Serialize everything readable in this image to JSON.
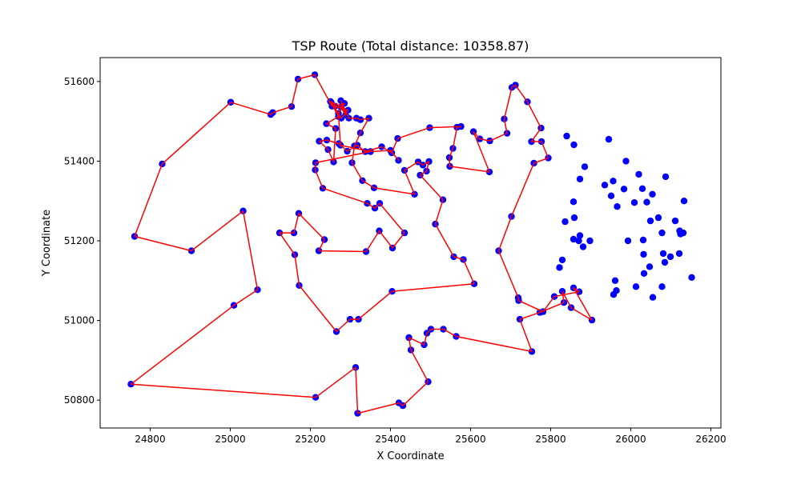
{
  "chart_data": {
    "type": "scatter",
    "title": "TSP Route (Total distance: 10358.87)",
    "xlabel": "X Coordinate",
    "ylabel": "Y Coordinate",
    "xlim": [
      24675,
      26225
    ],
    "ylim": [
      50730,
      51660
    ],
    "xticks": [
      24800,
      25000,
      25200,
      25400,
      25600,
      25800,
      26000,
      26200
    ],
    "yticks": [
      50800,
      51000,
      51200,
      51400,
      51600
    ],
    "grid": false,
    "legend": "none",
    "colors": {
      "route": "#ff0000",
      "city": "#0000ff"
    },
    "route": [
      [
        25001,
        51548
      ],
      [
        24830,
        51393
      ],
      [
        24761,
        51211
      ],
      [
        24903,
        51175
      ],
      [
        25032,
        51275
      ],
      [
        25068,
        51077
      ],
      [
        25009,
        51038
      ],
      [
        24752,
        50840
      ],
      [
        25213,
        50807
      ],
      [
        25313,
        50882
      ],
      [
        25318,
        50767
      ],
      [
        25421,
        50793
      ],
      [
        25431,
        50786
      ],
      [
        25494,
        50846
      ],
      [
        25451,
        50926
      ],
      [
        25446,
        50957
      ],
      [
        25484,
        50939
      ],
      [
        25491,
        50968
      ],
      [
        25501,
        50978
      ],
      [
        25532,
        50978
      ],
      [
        25564,
        50960
      ],
      [
        25753,
        50922
      ],
      [
        25723,
        51003
      ],
      [
        25773,
        51020
      ],
      [
        25833,
        51045
      ],
      [
        25829,
        51073
      ],
      [
        25851,
        51032
      ],
      [
        25903,
        51001
      ],
      [
        25857,
        51082
      ],
      [
        25871,
        51072
      ],
      [
        25809,
        51060
      ],
      [
        25781,
        51022
      ],
      [
        25720,
        51050
      ],
      [
        25719,
        51057
      ],
      [
        25670,
        51175
      ],
      [
        25702,
        51261
      ],
      [
        25758,
        51395
      ],
      [
        25794,
        51408
      ],
      [
        25777,
        51449
      ],
      [
        25752,
        51449
      ],
      [
        25776,
        51483
      ],
      [
        25742,
        51549
      ],
      [
        25712,
        51591
      ],
      [
        25703,
        51585
      ],
      [
        25684,
        51506
      ],
      [
        25691,
        51470
      ],
      [
        25648,
        51451
      ],
      [
        25623,
        51456
      ],
      [
        25607,
        51474
      ],
      [
        25647,
        51373
      ],
      [
        25548,
        51387
      ],
      [
        25547,
        51409
      ],
      [
        25556,
        51432
      ],
      [
        25566,
        51485
      ],
      [
        25576,
        51487
      ],
      [
        25498,
        51484
      ],
      [
        25418,
        51457
      ],
      [
        25403,
        51421
      ],
      [
        25378,
        51436
      ],
      [
        25337,
        51424
      ],
      [
        25317,
        51440
      ],
      [
        25292,
        51425
      ],
      [
        25271,
        51444
      ],
      [
        25241,
        51453
      ],
      [
        25222,
        51450
      ],
      [
        25244,
        51429
      ],
      [
        25258,
        51398
      ],
      [
        25263,
        51482
      ],
      [
        25240,
        51494
      ],
      [
        25270,
        51512
      ],
      [
        25250,
        51550
      ],
      [
        25276,
        51536
      ],
      [
        25288,
        51516
      ],
      [
        25276,
        51552
      ],
      [
        25296,
        51508
      ],
      [
        25315,
        51508
      ],
      [
        25325,
        51504
      ],
      [
        25346,
        51508
      ],
      [
        25325,
        51471
      ],
      [
        25310,
        51438
      ],
      [
        25304,
        51396
      ],
      [
        25330,
        51351
      ],
      [
        25359,
        51333
      ],
      [
        25460,
        51317
      ],
      [
        25435,
        51377
      ],
      [
        25469,
        51398
      ],
      [
        25481,
        51390
      ],
      [
        25496,
        51399
      ],
      [
        25490,
        51375
      ],
      [
        25474,
        51365
      ],
      [
        25531,
        51303
      ],
      [
        25512,
        51242
      ],
      [
        25558,
        51160
      ],
      [
        25582,
        51153
      ],
      [
        25609,
        51092
      ],
      [
        25404,
        51073
      ],
      [
        25320,
        51003
      ],
      [
        25299,
        51003
      ],
      [
        25265,
        50972
      ],
      [
        25172,
        51088
      ],
      [
        25161,
        51165
      ],
      [
        25123,
        51220
      ],
      [
        25159,
        51220
      ],
      [
        25171,
        51269
      ],
      [
        25235,
        51203
      ],
      [
        25221,
        51175
      ],
      [
        25339,
        51173
      ],
      [
        25372,
        51225
      ],
      [
        25405,
        51182
      ],
      [
        25435,
        51220
      ],
      [
        25373,
        51294
      ],
      [
        25361,
        51282
      ],
      [
        25342,
        51294
      ],
      [
        25231,
        51332
      ],
      [
        25212,
        51378
      ],
      [
        25213,
        51396
      ],
      [
        25350,
        51424
      ],
      [
        25400,
        51427
      ],
      [
        25420,
        51402
      ],
      [
        25400,
        51427
      ],
      [
        25350,
        51424
      ],
      [
        25275,
        51440
      ],
      [
        25270,
        51520
      ],
      [
        25285,
        51545
      ],
      [
        25262,
        51538
      ],
      [
        25252,
        51548
      ],
      [
        25277,
        51508
      ],
      [
        25294,
        51528
      ],
      [
        25254,
        51538
      ],
      [
        25211,
        51617
      ],
      [
        25169,
        51606
      ],
      [
        25153,
        51537
      ],
      [
        25106,
        51522
      ],
      [
        25101,
        51517
      ],
      [
        25001,
        51548
      ]
    ],
    "cities": [
      [
        26152,
        51108
      ],
      [
        26131,
        51220
      ],
      [
        26122,
        51225
      ],
      [
        26124,
        51217
      ],
      [
        26121,
        51168
      ],
      [
        26099,
        51160
      ],
      [
        26081,
        51168
      ],
      [
        26085,
        51146
      ],
      [
        26078,
        51220
      ],
      [
        26069,
        51258
      ],
      [
        26049,
        51250
      ],
      [
        26078,
        51085
      ],
      [
        26055,
        51058
      ],
      [
        26047,
        51135
      ],
      [
        26032,
        51166
      ],
      [
        26033,
        51118
      ],
      [
        26031,
        51202
      ],
      [
        26013,
        51085
      ],
      [
        25993,
        51200
      ],
      [
        25961,
        51100
      ],
      [
        25957,
        51065
      ],
      [
        25964,
        51075
      ],
      [
        25898,
        51200
      ],
      [
        25881,
        51185
      ],
      [
        25873,
        51213
      ],
      [
        25870,
        51200
      ],
      [
        25859,
        51258
      ],
      [
        25857,
        51204
      ],
      [
        25829,
        51152
      ],
      [
        25822,
        51133
      ],
      [
        25836,
        51248
      ],
      [
        25857,
        51298
      ],
      [
        26054,
        51317
      ],
      [
        26040,
        51297
      ],
      [
        26029,
        51331
      ],
      [
        26009,
        51296
      ],
      [
        26020,
        51367
      ],
      [
        26087,
        51361
      ],
      [
        26133,
        51300
      ],
      [
        25983,
        51330
      ],
      [
        25966,
        51286
      ],
      [
        25951,
        51313
      ],
      [
        25935,
        51340
      ],
      [
        25956,
        51350
      ],
      [
        25988,
        51400
      ],
      [
        25945,
        51455
      ],
      [
        25840,
        51463
      ],
      [
        25858,
        51441
      ],
      [
        25885,
        51386
      ],
      [
        25873,
        51355
      ],
      [
        26111,
        51250
      ]
    ]
  }
}
